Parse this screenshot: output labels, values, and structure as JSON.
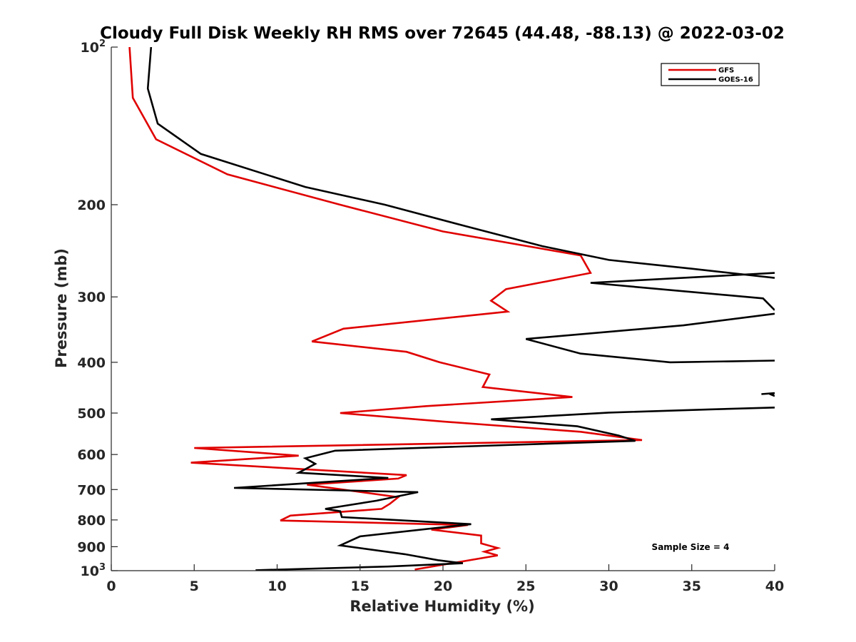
{
  "chart_data": {
    "type": "line",
    "title": "Cloudy Full Disk Weekly RH RMS over 72645 (44.48, -88.13) @ 2022-03-02",
    "xlabel": "Relative Humidity (%)",
    "ylabel": "Pressure (mb)",
    "xlim": [
      0,
      40
    ],
    "ylim": [
      100,
      1000
    ],
    "yscale": "log",
    "yreversed": true,
    "grid": false,
    "legend_position": "top-right",
    "xticks": [
      0,
      5,
      10,
      15,
      20,
      25,
      30,
      35,
      40
    ],
    "xtick_labels": [
      "0",
      "5",
      "10",
      "15",
      "20",
      "25",
      "30",
      "35",
      "40"
    ],
    "yticks": [
      100,
      200,
      300,
      400,
      500,
      600,
      700,
      800,
      900,
      1000
    ],
    "ytick_labels": [
      {
        "base": "10",
        "sup": "2"
      },
      {
        "base": "200"
      },
      {
        "base": "300"
      },
      {
        "base": "400"
      },
      {
        "base": "500"
      },
      {
        "base": "600"
      },
      {
        "base": "700"
      },
      {
        "base": "800"
      },
      {
        "base": "900"
      },
      {
        "base": "10",
        "sup": "3"
      }
    ],
    "annotation": "Sample Size = 4",
    "series": [
      {
        "name": "GFS",
        "color": "#e00000",
        "points": [
          [
            1.1,
            100
          ],
          [
            1.3,
            125
          ],
          [
            2.7,
            150
          ],
          [
            7.0,
            175
          ],
          [
            13.8,
            200
          ],
          [
            20.0,
            225
          ],
          [
            28.3,
            250
          ],
          [
            28.9,
            270
          ],
          [
            23.8,
            290
          ],
          [
            22.9,
            305
          ],
          [
            23.9,
            320
          ],
          [
            14.0,
            345
          ],
          [
            12.1,
            365
          ],
          [
            17.8,
            382
          ],
          [
            19.8,
            400
          ],
          [
            22.8,
            422
          ],
          [
            22.4,
            446
          ],
          [
            27.8,
            466
          ],
          [
            19.0,
            485
          ],
          [
            13.8,
            500
          ],
          [
            20.0,
            519
          ],
          [
            28.3,
            543
          ],
          [
            32.0,
            563
          ],
          [
            5.0,
            583
          ],
          [
            11.3,
            603
          ],
          [
            4.8,
            622
          ],
          [
            17.8,
            657
          ],
          [
            17.3,
            667
          ],
          [
            11.8,
            685
          ],
          [
            17.3,
            724
          ],
          [
            16.8,
            745
          ],
          [
            16.3,
            762
          ],
          [
            10.8,
            785
          ],
          [
            10.2,
            802
          ],
          [
            21.5,
            818
          ],
          [
            19.3,
            835
          ],
          [
            22.3,
            857
          ],
          [
            22.3,
            887
          ],
          [
            23.3,
            905
          ],
          [
            22.5,
            920
          ],
          [
            23.3,
            935
          ],
          [
            18.3,
            995
          ]
        ]
      },
      {
        "name": "GOES-16",
        "color": "#000000",
        "segments": [
          [
            [
              2.4,
              100
            ],
            [
              2.2,
              120
            ],
            [
              2.8,
              140
            ],
            [
              5.4,
              160
            ],
            [
              11.7,
              185
            ],
            [
              16.5,
              200
            ],
            [
              21.4,
              220
            ],
            [
              26.0,
              240
            ],
            [
              30.0,
              255
            ],
            [
              35.0,
              265
            ],
            [
              40.0,
              276
            ]
          ],
          [
            [
              40.0,
              318
            ],
            [
              39.3,
              302
            ],
            [
              28.9,
              282
            ],
            [
              40.0,
              270
            ]
          ],
          [
            [
              40.0,
              397
            ],
            [
              33.7,
              400
            ],
            [
              28.3,
              385
            ],
            [
              25.0,
              361
            ],
            [
              34.5,
              340
            ],
            [
              40.0,
              323
            ]
          ],
          [
            [
              39.2,
              460
            ],
            [
              40.0,
              458
            ],
            [
              39.8,
              461
            ],
            [
              40.0,
              464
            ]
          ],
          [
            [
              40.0,
              488
            ],
            [
              36.1,
              492
            ],
            [
              30.0,
              499
            ],
            [
              22.9,
              514
            ],
            [
              28.1,
              530
            ],
            [
              30.6,
              552
            ],
            [
              31.6,
              565
            ],
            [
              13.5,
              590
            ],
            [
              11.7,
              610
            ],
            [
              12.3,
              625
            ],
            [
              11.3,
              650
            ],
            [
              16.7,
              665
            ],
            [
              7.4,
              695
            ],
            [
              18.5,
              708
            ],
            [
              16.0,
              735
            ],
            [
              12.9,
              762
            ],
            [
              13.8,
              770
            ],
            [
              13.9,
              790
            ],
            [
              21.7,
              815
            ],
            [
              15.0,
              860
            ],
            [
              13.8,
              895
            ],
            [
              17.7,
              930
            ],
            [
              19.7,
              955
            ],
            [
              21.2,
              968
            ],
            [
              16.7,
              982
            ],
            [
              8.7,
              998
            ]
          ]
        ]
      }
    ]
  }
}
